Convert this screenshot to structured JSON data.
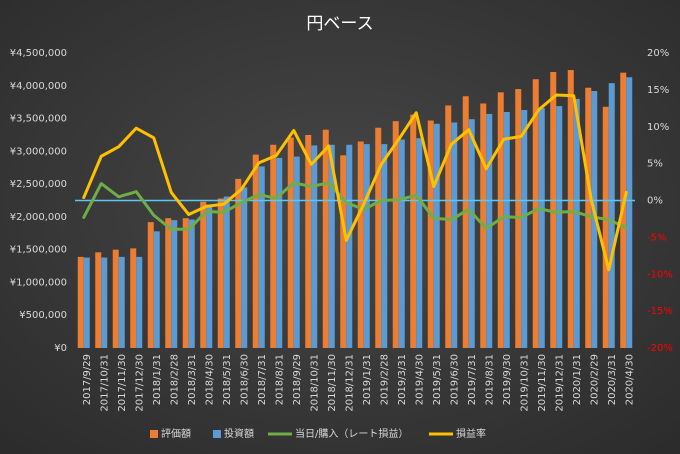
{
  "chart_data": {
    "type": "bar-line-combo",
    "title": "円ベース",
    "categories": [
      "2017/9/29",
      "2017/10/31",
      "2017/11/30",
      "2017/12/30",
      "2018/1/31",
      "2018/2/28",
      "2018/3/31",
      "2018/4/30",
      "2018/5/31",
      "2018/6/30",
      "2018/7/31",
      "2018/8/31",
      "2018/9/29",
      "2018/10/31",
      "2018/11/30",
      "2018/12/31",
      "2019/1/31",
      "2019/2/28",
      "2019/3/31",
      "2019/4/30",
      "2019/5/31",
      "2019/6/30",
      "2019/7/31",
      "2019/8/31",
      "2019/9/30",
      "2019/10/31",
      "2019/11/30",
      "2019/12/31",
      "2020/1/31",
      "2020/2/29",
      "2020/3/31",
      "2020/4/30"
    ],
    "series": [
      {
        "name": "評価額",
        "type": "bar",
        "color": "#ed7d31",
        "values": [
          1390000,
          1460000,
          1500000,
          1520000,
          1920000,
          1980000,
          1980000,
          2230000,
          2280000,
          2580000,
          2950000,
          3100000,
          3210000,
          3250000,
          3330000,
          2940000,
          3150000,
          3360000,
          3460000,
          3560000,
          3470000,
          3700000,
          3840000,
          3730000,
          3900000,
          3950000,
          4100000,
          4210000,
          4240000,
          3970000,
          3680000,
          4200000
        ]
      },
      {
        "name": "投資額",
        "type": "bar",
        "color": "#5b9bd5",
        "values": [
          1380000,
          1380000,
          1390000,
          1390000,
          1780000,
          1950000,
          1960000,
          2190000,
          2310000,
          2450000,
          2770000,
          2900000,
          2920000,
          3090000,
          3100000,
          3100000,
          3110000,
          3110000,
          3180000,
          3200000,
          3420000,
          3440000,
          3490000,
          3570000,
          3600000,
          3630000,
          3660000,
          3690000,
          3800000,
          3920000,
          4040000,
          4130000
        ]
      },
      {
        "name": "当日/購入（レート損益）",
        "type": "line",
        "axis": "y2",
        "color": "#70ad47",
        "values": [
          -2.3,
          2.3,
          0.5,
          1.2,
          -2,
          -3.9,
          -3.9,
          -1.5,
          -1.6,
          -0.3,
          0.8,
          0.3,
          2.4,
          1.9,
          2.4,
          -0.3,
          -1.2,
          0,
          0.1,
          0.7,
          -2.4,
          -2.6,
          -1.2,
          -3.8,
          -2.2,
          -2.3,
          -1.1,
          -1.6,
          -1.5,
          -2.2,
          -2.6,
          -3.7
        ]
      },
      {
        "name": "損益率",
        "type": "line",
        "axis": "y2",
        "color": "#ffc000",
        "values": [
          0.4,
          6,
          7.3,
          9.8,
          8.5,
          1.1,
          -1.9,
          -0.8,
          -0.5,
          1.5,
          5.1,
          6.1,
          9.5,
          4.9,
          7.4,
          -5.4,
          -0.5,
          4.9,
          8.3,
          11.9,
          1.9,
          7.6,
          9.6,
          4.3,
          8.3,
          8.7,
          12.3,
          14.3,
          14.2,
          0.1,
          -9.4,
          1.1
        ]
      }
    ],
    "ylim": [
      0,
      4500000
    ],
    "yticks": [
      {
        "value": 0,
        "label": "¥0"
      },
      {
        "value": 500000,
        "label": "¥500,000"
      },
      {
        "value": 1000000,
        "label": "¥1,000,000"
      },
      {
        "value": 1500000,
        "label": "¥1,500,000"
      },
      {
        "value": 2000000,
        "label": "¥2,000,000"
      },
      {
        "value": 2500000,
        "label": "¥2,500,000"
      },
      {
        "value": 3000000,
        "label": "¥3,000,000"
      },
      {
        "value": 3500000,
        "label": "¥3,500,000"
      },
      {
        "value": 4000000,
        "label": "¥4,000,000"
      },
      {
        "value": 4500000,
        "label": "¥4,500,000"
      }
    ],
    "y2lim": [
      -20,
      20
    ],
    "y2ticks": [
      {
        "value": -20,
        "label": "-20%"
      },
      {
        "value": -15,
        "label": "-15%"
      },
      {
        "value": -10,
        "label": "-10%"
      },
      {
        "value": -5,
        "label": "-5%"
      },
      {
        "value": 0,
        "label": "0%"
      },
      {
        "value": 5,
        "label": "5%"
      },
      {
        "value": 10,
        "label": "10%"
      },
      {
        "value": 15,
        "label": "15%"
      },
      {
        "value": 20,
        "label": "20%"
      }
    ],
    "negative_tick_color": "#ff0000",
    "zero_line_color": "#5bc8f0",
    "grid": false,
    "legend": "bottom"
  }
}
